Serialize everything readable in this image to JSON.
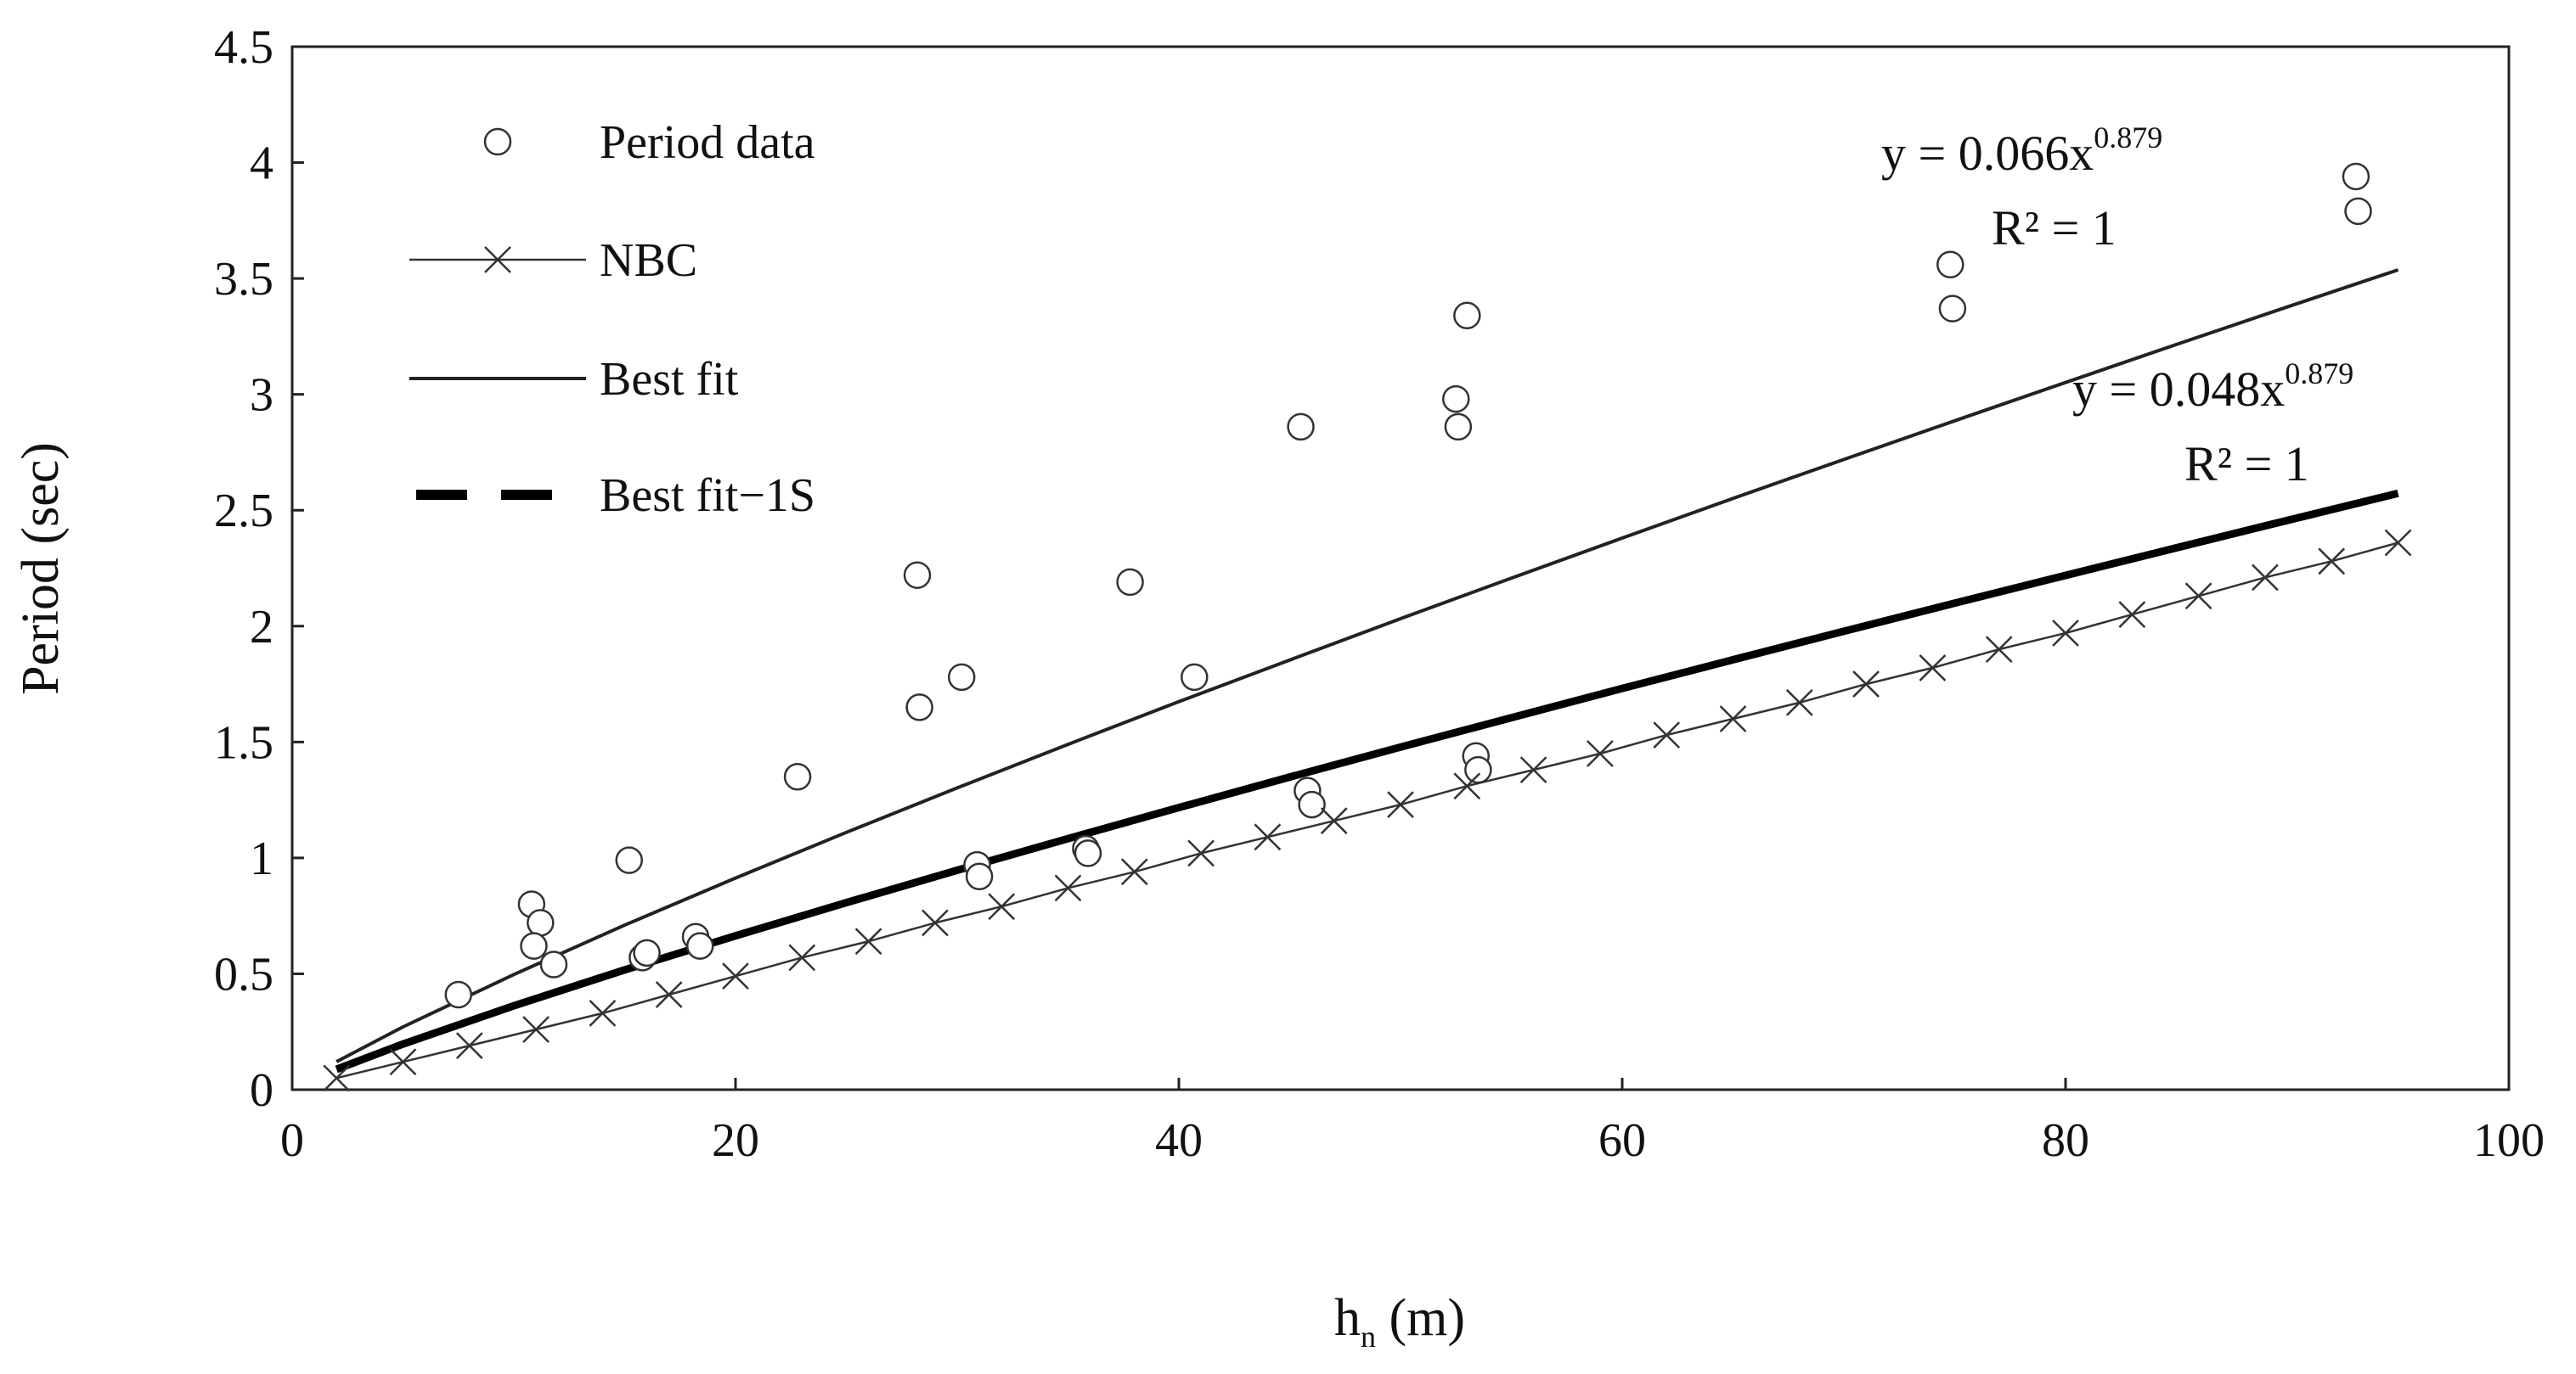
{
  "chart_data": {
    "type": "scatter",
    "title": "",
    "xlabel": {
      "base": "h",
      "subscript": "n",
      "unit": " (m)"
    },
    "ylabel": "Period (sec)",
    "xlim": [
      0,
      100
    ],
    "ylim": [
      0,
      4.5
    ],
    "x_ticks": [
      "0",
      "20",
      "40",
      "60",
      "80",
      "100"
    ],
    "y_ticks": [
      "0",
      "0.5",
      "1",
      "1.5",
      "2",
      "2.5",
      "3",
      "3.5",
      "4",
      "4.5"
    ],
    "grid": false,
    "legend_position": "top-left",
    "series": [
      {
        "name": "Period data",
        "kind": "scatter",
        "marker": "circle",
        "x": [
          7.5,
          10.8,
          11.2,
          10.9,
          11.8,
          15.2,
          15.8,
          16.0,
          18.2,
          18.4,
          22.8,
          28.2,
          28.3,
          30.2,
          30.9,
          31.0,
          35.8,
          35.9,
          37.8,
          40.7,
          45.5,
          45.8,
          46.0,
          52.5,
          52.6,
          53.0,
          53.4,
          53.5,
          74.8,
          74.9,
          93.1,
          93.2
        ],
        "y": [
          0.41,
          0.8,
          0.72,
          0.62,
          0.54,
          0.99,
          0.57,
          0.59,
          0.66,
          0.62,
          1.35,
          2.22,
          1.65,
          1.78,
          0.97,
          0.92,
          1.04,
          1.02,
          2.19,
          1.78,
          2.86,
          1.29,
          1.23,
          2.98,
          2.86,
          3.34,
          1.44,
          1.38,
          3.56,
          3.37,
          3.94,
          3.79
        ]
      },
      {
        "name": "NBC",
        "kind": "line",
        "marker": "x",
        "x": [
          2,
          5,
          8,
          11,
          14,
          17,
          20,
          23,
          26,
          29,
          32,
          35,
          38,
          41,
          44,
          47,
          50,
          53,
          56,
          59,
          62,
          65,
          68,
          71,
          74,
          77,
          80,
          83,
          86,
          89,
          92,
          95
        ],
        "y": [
          0.05,
          0.12,
          0.19,
          0.26,
          0.33,
          0.41,
          0.49,
          0.57,
          0.64,
          0.72,
          0.79,
          0.87,
          0.94,
          1.02,
          1.09,
          1.16,
          1.23,
          1.31,
          1.38,
          1.45,
          1.53,
          1.6,
          1.67,
          1.75,
          1.82,
          1.9,
          1.97,
          2.05,
          2.13,
          2.21,
          2.28,
          2.36
        ]
      },
      {
        "name": "Best fit",
        "kind": "line",
        "marker": "none",
        "equation": {
          "text": "y = 0.066x",
          "exp": "0.879",
          "r2": "R² = 1"
        },
        "x": [
          2,
          5,
          10,
          15,
          20,
          25,
          30,
          35,
          40,
          45,
          50,
          55,
          60,
          65,
          70,
          75,
          80,
          85,
          90,
          95
        ],
        "y": [
          0.121,
          0.271,
          0.497,
          0.71,
          0.913,
          1.11,
          1.302,
          1.49,
          1.674,
          1.854,
          2.032,
          2.207,
          2.38,
          2.551,
          2.719,
          2.886,
          3.051,
          3.215,
          3.377,
          3.537
        ]
      },
      {
        "name": "Best fit−1S",
        "kind": "line",
        "marker": "none",
        "equation": {
          "text": "y = 0.048x",
          "exp": "0.879",
          "r2": "R² = 1"
        },
        "x": [
          2,
          5,
          10,
          15,
          20,
          25,
          30,
          35,
          40,
          45,
          50,
          55,
          60,
          65,
          70,
          75,
          80,
          85,
          90,
          95
        ],
        "y": [
          0.088,
          0.197,
          0.362,
          0.517,
          0.664,
          0.807,
          0.947,
          1.083,
          1.217,
          1.349,
          1.478,
          1.605,
          1.731,
          1.855,
          1.978,
          2.099,
          2.219,
          2.338,
          2.456,
          2.573
        ]
      }
    ]
  }
}
